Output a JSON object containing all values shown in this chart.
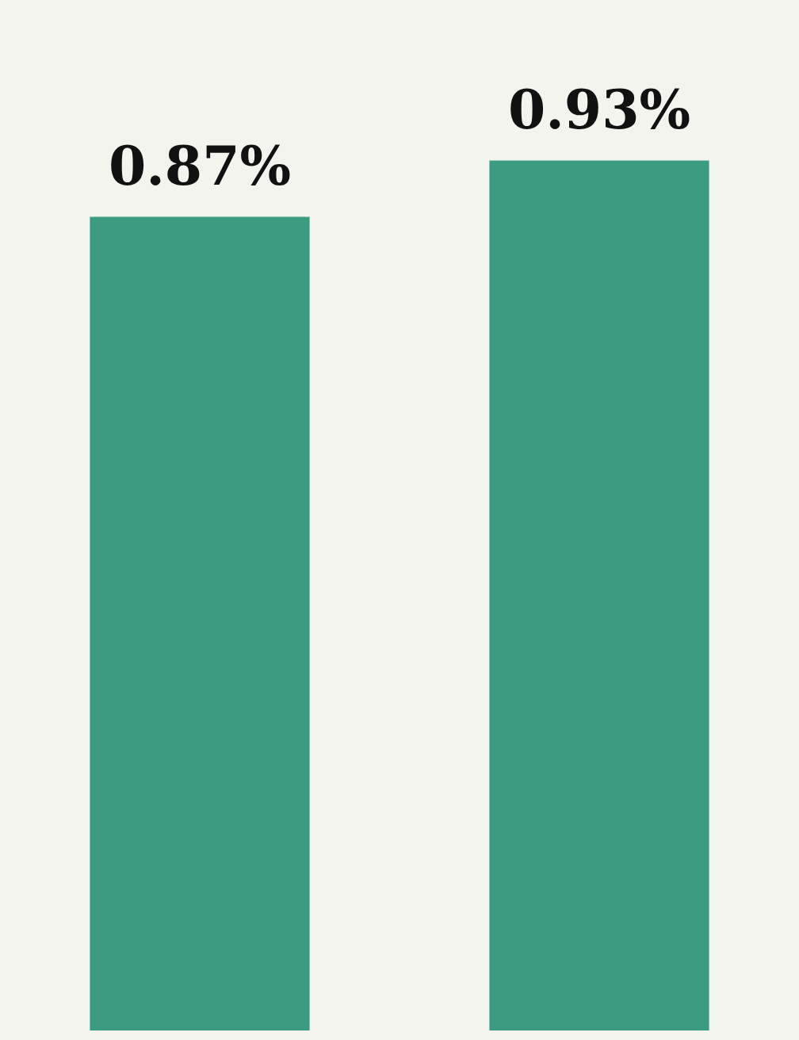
{
  "chart_data": {
    "type": "bar",
    "categories": [
      null,
      null
    ],
    "values": [
      0.87,
      0.93
    ],
    "value_labels": [
      "0.87%",
      "0.93%"
    ],
    "color": "#3c9c82",
    "tick_labels": false
  }
}
